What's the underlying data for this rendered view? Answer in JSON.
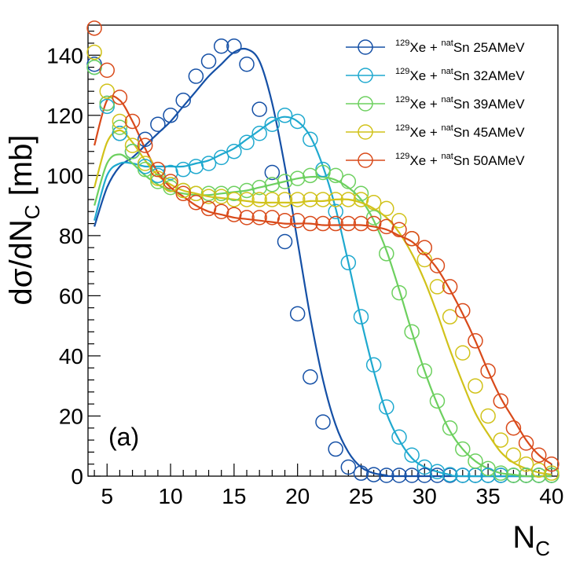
{
  "chart_data": {
    "type": "line",
    "title": "",
    "xlabel": "N",
    "xlabel_sub": "C",
    "ylabel": "dσ/dN",
    "ylabel_sub": "C",
    "ylabel_unit": " [mb]",
    "xlim": [
      3.5,
      40.5
    ],
    "ylim": [
      0,
      150
    ],
    "x_ticks": [
      5,
      10,
      15,
      20,
      25,
      30,
      35,
      40
    ],
    "y_ticks": [
      0,
      20,
      40,
      60,
      80,
      100,
      120,
      140
    ],
    "annotation": "(a)",
    "legend_position": "top-right",
    "x": [
      4,
      5,
      6,
      7,
      8,
      9,
      10,
      11,
      12,
      13,
      14,
      15,
      16,
      17,
      18,
      19,
      20,
      21,
      22,
      23,
      24,
      25,
      26,
      27,
      28,
      29,
      30,
      31,
      32,
      33,
      34,
      35,
      36,
      37,
      38,
      39,
      40
    ],
    "series": [
      {
        "name": "Xe + Sn 25AMeV",
        "label_sup1": "129",
        "label_mid": "Xe + ",
        "label_sup2": "nat",
        "label_end": "Sn 25AMeV",
        "color": "#1550a6",
        "points": [
          137,
          124,
          114,
          108,
          112,
          117,
          120,
          125,
          133,
          138,
          143,
          143,
          137,
          122,
          101,
          78,
          54,
          33,
          18,
          9,
          3,
          1,
          0.5,
          0,
          0,
          0,
          0,
          0,
          0,
          0,
          0,
          0,
          0,
          0,
          0,
          0,
          0
        ],
        "curve": [
          [
            4,
            83
          ],
          [
            5,
            96
          ],
          [
            6,
            103
          ],
          [
            7,
            106
          ],
          [
            8,
            110
          ],
          [
            9,
            114
          ],
          [
            10,
            118
          ],
          [
            11,
            123
          ],
          [
            12,
            128
          ],
          [
            13,
            133
          ],
          [
            14,
            137
          ],
          [
            15,
            141
          ],
          [
            16,
            142
          ],
          [
            17,
            138
          ],
          [
            18,
            124
          ],
          [
            19,
            103
          ],
          [
            20,
            78
          ],
          [
            21,
            53
          ],
          [
            22,
            32
          ],
          [
            23,
            17
          ],
          [
            24,
            8
          ],
          [
            25,
            3
          ],
          [
            26,
            1
          ],
          [
            27,
            0.3
          ],
          [
            28,
            0
          ],
          [
            40,
            0
          ]
        ]
      },
      {
        "name": "Xe + Sn 32AMeV",
        "label_sup1": "129",
        "label_mid": "Xe + ",
        "label_sup2": "nat",
        "label_end": "Sn 32AMeV",
        "color": "#1fa9cf",
        "points": [
          136,
          123,
          114,
          108,
          103,
          100,
          101,
          102,
          103,
          104,
          106,
          108,
          111,
          114,
          117,
          120,
          118,
          112,
          102,
          88,
          71,
          53,
          37,
          23,
          13,
          7,
          3,
          1.5,
          0.5,
          0,
          0,
          0,
          0,
          0,
          0,
          0,
          0
        ],
        "curve": [
          [
            4,
            85
          ],
          [
            5,
            100
          ],
          [
            6,
            104
          ],
          [
            7,
            104
          ],
          [
            8,
            103
          ],
          [
            9,
            103
          ],
          [
            10,
            103
          ],
          [
            11,
            103
          ],
          [
            12,
            104
          ],
          [
            13,
            105
          ],
          [
            14,
            107
          ],
          [
            15,
            109
          ],
          [
            16,
            112
          ],
          [
            17,
            115
          ],
          [
            18,
            118
          ],
          [
            19,
            119.5
          ],
          [
            20,
            118
          ],
          [
            21,
            113
          ],
          [
            22,
            103
          ],
          [
            23,
            89
          ],
          [
            24,
            71
          ],
          [
            25,
            52
          ],
          [
            26,
            35
          ],
          [
            27,
            21
          ],
          [
            28,
            12
          ],
          [
            29,
            6
          ],
          [
            30,
            3
          ],
          [
            31,
            1.5
          ],
          [
            32,
            0.5
          ],
          [
            33,
            0
          ],
          [
            40,
            0
          ]
        ]
      },
      {
        "name": "Xe + Sn 39AMeV",
        "label_sup1": "129",
        "label_mid": "Xe + ",
        "label_sup2": "nat",
        "label_end": "Sn 39AMeV",
        "color": "#6dd05f",
        "points": [
          136,
          124,
          116,
          108,
          102,
          98,
          96,
          95,
          94,
          94,
          94,
          94,
          95,
          96,
          97,
          98,
          99,
          100,
          101,
          100,
          98,
          94,
          86,
          74,
          61,
          48,
          35,
          25,
          16,
          9,
          5,
          2.5,
          1,
          0,
          0,
          0,
          0
        ],
        "curve": [
          [
            4,
            90
          ],
          [
            5,
            104
          ],
          [
            6,
            107
          ],
          [
            7,
            104
          ],
          [
            8,
            100
          ],
          [
            9,
            97
          ],
          [
            10,
            95
          ],
          [
            11,
            94
          ],
          [
            12,
            93.5
          ],
          [
            13,
            93.5
          ],
          [
            14,
            94
          ],
          [
            15,
            94.5
          ],
          [
            16,
            95
          ],
          [
            17,
            96
          ],
          [
            18,
            97
          ],
          [
            19,
            98
          ],
          [
            20,
            99
          ],
          [
            21,
            99.5
          ],
          [
            22,
            99.5
          ],
          [
            23,
            98.5
          ],
          [
            24,
            96
          ],
          [
            25,
            92
          ],
          [
            26,
            85
          ],
          [
            27,
            75
          ],
          [
            28,
            62
          ],
          [
            29,
            48
          ],
          [
            30,
            35
          ],
          [
            31,
            24
          ],
          [
            32,
            15
          ],
          [
            33,
            9
          ],
          [
            34,
            5
          ],
          [
            35,
            2.5
          ],
          [
            36,
            1
          ],
          [
            37,
            0.5
          ],
          [
            38,
            0
          ],
          [
            40,
            0
          ]
        ]
      },
      {
        "name": "Xe + Sn 45AMeV",
        "label_sup1": "129",
        "label_mid": "Xe + ",
        "label_sup2": "nat",
        "label_end": "Sn 45AMeV",
        "color": "#d1c21a",
        "points": [
          141,
          128,
          118,
          110,
          104,
          99,
          97,
          95,
          94,
          93,
          93,
          92,
          92,
          92,
          92,
          92,
          92,
          92,
          92,
          92,
          92,
          92,
          91,
          89,
          85,
          79,
          72,
          63,
          53,
          41,
          30,
          20,
          12,
          7,
          4,
          2,
          1
        ],
        "curve": [
          [
            4,
            96
          ],
          [
            5,
            111
          ],
          [
            6,
            115
          ],
          [
            7,
            111
          ],
          [
            8,
            105
          ],
          [
            9,
            100
          ],
          [
            10,
            97
          ],
          [
            11,
            95
          ],
          [
            12,
            94
          ],
          [
            13,
            93
          ],
          [
            14,
            92.5
          ],
          [
            15,
            92
          ],
          [
            16,
            91.5
          ],
          [
            17,
            91
          ],
          [
            18,
            91
          ],
          [
            19,
            91
          ],
          [
            20,
            91
          ],
          [
            21,
            91.5
          ],
          [
            22,
            91.5
          ],
          [
            23,
            92
          ],
          [
            24,
            92
          ],
          [
            25,
            91
          ],
          [
            26,
            89
          ],
          [
            27,
            86
          ],
          [
            28,
            81
          ],
          [
            29,
            74
          ],
          [
            30,
            65
          ],
          [
            31,
            54
          ],
          [
            32,
            42
          ],
          [
            33,
            31
          ],
          [
            34,
            21
          ],
          [
            35,
            14
          ],
          [
            36,
            8
          ],
          [
            37,
            4.5
          ],
          [
            38,
            2.5
          ],
          [
            39,
            1.2
          ],
          [
            40,
            0.5
          ]
        ]
      },
      {
        "name": "Xe + Sn 50AMeV",
        "label_sup1": "129",
        "label_mid": "Xe + ",
        "label_sup2": "nat",
        "label_end": "Sn 50AMeV",
        "color": "#d94a1a",
        "points": [
          149,
          135,
          126,
          118,
          110,
          102,
          98,
          94,
          91,
          89,
          88,
          87,
          86,
          86,
          86,
          85,
          85,
          84,
          84,
          84,
          84,
          84,
          84,
          83,
          82,
          79,
          76,
          70,
          63,
          55,
          45,
          35,
          25,
          16,
          11,
          7,
          4
        ],
        "curve": [
          [
            4,
            110
          ],
          [
            5,
            125
          ],
          [
            6,
            125
          ],
          [
            7,
            118
          ],
          [
            8,
            109
          ],
          [
            9,
            101
          ],
          [
            10,
            96
          ],
          [
            11,
            93
          ],
          [
            12,
            90
          ],
          [
            13,
            88
          ],
          [
            14,
            87
          ],
          [
            15,
            86
          ],
          [
            16,
            85.5
          ],
          [
            17,
            85
          ],
          [
            18,
            84.5
          ],
          [
            19,
            84
          ],
          [
            20,
            84
          ],
          [
            21,
            84
          ],
          [
            22,
            83.5
          ],
          [
            23,
            83.5
          ],
          [
            24,
            83.5
          ],
          [
            25,
            83.5
          ],
          [
            26,
            83
          ],
          [
            27,
            82
          ],
          [
            28,
            80
          ],
          [
            29,
            78
          ],
          [
            30,
            74
          ],
          [
            31,
            69
          ],
          [
            32,
            62
          ],
          [
            33,
            54
          ],
          [
            34,
            45
          ],
          [
            35,
            35
          ],
          [
            36,
            26
          ],
          [
            37,
            19
          ],
          [
            38,
            12
          ],
          [
            39,
            7
          ],
          [
            40,
            4
          ]
        ]
      }
    ]
  }
}
